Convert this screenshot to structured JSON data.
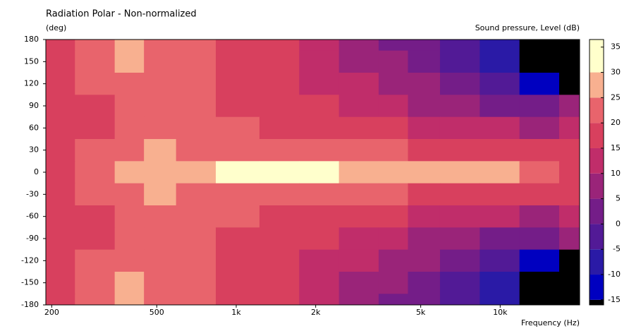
{
  "chart_data": {
    "type": "heatmap",
    "title": "Radiation Polar - Non-normalized",
    "y_label": "(deg)",
    "x_label": "Frequency  (Hz)",
    "colorbar_label": "Sound pressure, Level  (dB)",
    "x_log": true,
    "xlim": [
      190,
      20000
    ],
    "xticks": [
      200,
      500,
      {
        "value": 1000,
        "label": "1k"
      },
      {
        "value": 2000,
        "label": "2k"
      },
      {
        "value": 5000,
        "label": "5k"
      },
      {
        "value": 10000,
        "label": "10k"
      }
    ],
    "ylim": [
      -180,
      180
    ],
    "yticks": [
      180,
      150,
      120,
      90,
      60,
      30,
      0,
      -30,
      -60,
      -90,
      -120,
      -150,
      -180
    ],
    "zlim": [
      -16,
      36.5
    ],
    "zticks": [
      35,
      30,
      25,
      20,
      15,
      10,
      5,
      0,
      -5,
      -10,
      -15
    ],
    "levels": [
      -15,
      -10,
      -5,
      0,
      5,
      10,
      15,
      20,
      25,
      30
    ],
    "colors": [
      "#000000",
      "#0000c0",
      "#2a1aa6",
      "#521a96",
      "#741d88",
      "#9a2479",
      "#c02d6a",
      "#d8405e",
      "#e8646c",
      "#f8b090",
      "#ffffcc"
    ],
    "x": [
      200,
      300,
      400,
      500,
      700,
      1000,
      1500,
      2000,
      3000,
      4000,
      5000,
      7000,
      10000,
      14000,
      20000
    ],
    "y": [
      180,
      150,
      120,
      90,
      60,
      30,
      0,
      -30,
      -60,
      -90,
      -120,
      -150,
      -180
    ],
    "z": [
      [
        17,
        21,
        26,
        22,
        20,
        18,
        15,
        10,
        7,
        3,
        0,
        -3,
        -8,
        -18,
        -20
      ],
      [
        17,
        21,
        26,
        22,
        20,
        18,
        15,
        12,
        9,
        5,
        2,
        -2,
        -8,
        -18,
        -20
      ],
      [
        16,
        20,
        24,
        22,
        20,
        18,
        15,
        13,
        10,
        7,
        5,
        2,
        -3,
        -12,
        -20
      ],
      [
        16,
        19,
        23,
        22,
        20,
        18,
        16,
        15,
        13,
        10,
        8,
        6,
        4,
        0,
        5
      ],
      [
        17,
        19,
        22,
        23,
        21,
        20,
        19,
        18,
        17,
        15,
        14,
        12,
        10,
        8,
        13
      ],
      [
        18,
        21,
        24,
        25,
        24,
        23,
        22,
        22,
        21,
        20,
        19,
        18,
        18,
        17,
        16
      ],
      [
        19,
        22,
        27,
        28,
        28,
        31,
        31,
        31,
        27,
        25,
        26,
        25,
        26,
        22,
        17
      ],
      [
        18,
        21,
        24,
        25,
        24,
        23,
        22,
        22,
        21,
        20,
        19,
        18,
        18,
        17,
        16
      ],
      [
        17,
        19,
        22,
        23,
        21,
        20,
        19,
        18,
        17,
        15,
        14,
        12,
        10,
        8,
        13
      ],
      [
        16,
        19,
        23,
        22,
        20,
        18,
        16,
        15,
        13,
        10,
        8,
        6,
        4,
        0,
        5
      ],
      [
        16,
        20,
        24,
        22,
        20,
        18,
        15,
        13,
        10,
        7,
        5,
        2,
        -3,
        -12,
        -20
      ],
      [
        17,
        21,
        26,
        22,
        20,
        18,
        15,
        12,
        9,
        5,
        2,
        -2,
        -8,
        -18,
        -20
      ],
      [
        17,
        21,
        26,
        22,
        20,
        18,
        15,
        10,
        7,
        3,
        0,
        -3,
        -8,
        -18,
        -20
      ]
    ]
  }
}
